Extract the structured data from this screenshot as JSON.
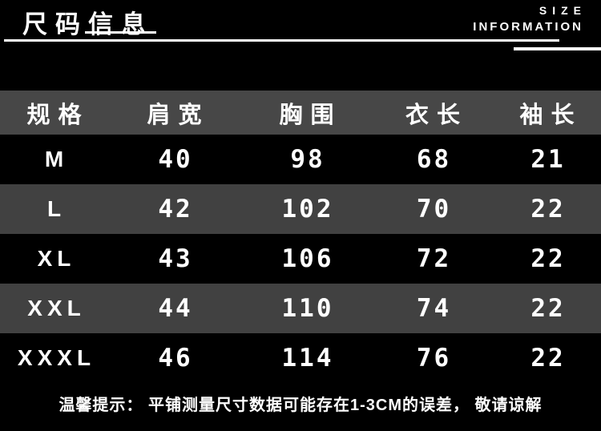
{
  "page": {
    "title_cn": "尺码信息",
    "title_en_top": "SIZE",
    "title_en_bottom": "INFORMATION"
  },
  "table": {
    "columns": [
      "规格",
      "肩宽",
      "胸围",
      "衣长",
      "袖长"
    ],
    "column_keys": [
      "size",
      "shoulder",
      "chest",
      "length",
      "sleeve"
    ],
    "rows": [
      {
        "size": "M",
        "shoulder": "40",
        "chest": "98",
        "length": "68",
        "sleeve": "21"
      },
      {
        "size": "L",
        "shoulder": "42",
        "chest": "102",
        "length": "70",
        "sleeve": "22"
      },
      {
        "size": "XL",
        "shoulder": "43",
        "chest": "106",
        "length": "72",
        "sleeve": "22"
      },
      {
        "size": "XXL",
        "shoulder": "44",
        "chest": "110",
        "length": "74",
        "sleeve": "22"
      },
      {
        "size": "XXXL",
        "shoulder": "46",
        "chest": "114",
        "length": "76",
        "sleeve": "22"
      }
    ]
  },
  "footer": {
    "note": "温馨提示： 平铺测量尺寸数据可能存在1-3CM的误差， 敬请谅解"
  },
  "colors": {
    "background": "#000000",
    "header_row_bg": "#474747",
    "alt_row_bg": "#414141",
    "text": "#ffffff"
  },
  "chart_data": {
    "type": "table",
    "title": "尺码信息 / SIZE INFORMATION",
    "columns": [
      "规格",
      "肩宽",
      "胸围",
      "衣长",
      "袖长"
    ],
    "rows": [
      [
        "M",
        40,
        98,
        68,
        21
      ],
      [
        "L",
        42,
        102,
        70,
        22
      ],
      [
        "XL",
        43,
        106,
        72,
        22
      ],
      [
        "XXL",
        44,
        110,
        74,
        22
      ],
      [
        "XXXL",
        46,
        114,
        76,
        22
      ]
    ],
    "units": "cm",
    "note": "温馨提示： 平铺测量尺寸数据可能存在1-3CM的误差， 敬请谅解",
    "layout_hints": {
      "background": "black",
      "header_row": "gray",
      "alternating_rows": [
        "black",
        "gray"
      ]
    }
  }
}
